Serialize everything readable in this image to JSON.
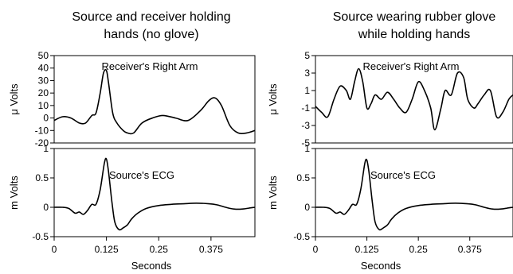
{
  "chart_data": [
    {
      "type": "line",
      "panel": "left",
      "title_lines": [
        "Source and receiver holding",
        "hands (no glove)"
      ],
      "xlabel": "Seconds",
      "x_ticks": [
        "0",
        "0.125",
        "0.25",
        "0.375"
      ],
      "subplots": [
        {
          "annotation": "Receiver's Right Arm",
          "ylabel": "μ Volts",
          "ylim": [
            -20,
            50
          ],
          "y_ticks": [
            "50",
            "40",
            "30",
            "20",
            "10",
            "0",
            "-10",
            "-20"
          ],
          "x": [
            0,
            0.02,
            0.04,
            0.06,
            0.075,
            0.09,
            0.1,
            0.11,
            0.118,
            0.125,
            0.13,
            0.14,
            0.15,
            0.165,
            0.175,
            0.19,
            0.21,
            0.235,
            0.26,
            0.29,
            0.32,
            0.35,
            0.37,
            0.385,
            0.4,
            0.42,
            0.44,
            0.46,
            0.48
          ],
          "y": [
            -2,
            1,
            0,
            -4,
            -4,
            2,
            4,
            20,
            36,
            38,
            28,
            4,
            -4,
            -10,
            -12,
            -12,
            -4,
            0,
            2,
            0,
            -2,
            6,
            14,
            16,
            10,
            -6,
            -12,
            -12,
            -10
          ]
        },
        {
          "annotation": "Source's ECG",
          "ylabel": "m Volts",
          "ylim": [
            -0.5,
            1
          ],
          "y_ticks": [
            "1",
            "0.5",
            "0",
            "-0.5"
          ],
          "x": [
            0,
            0.02,
            0.035,
            0.05,
            0.06,
            0.07,
            0.08,
            0.09,
            0.1,
            0.11,
            0.12,
            0.125,
            0.13,
            0.138,
            0.145,
            0.155,
            0.165,
            0.175,
            0.185,
            0.2,
            0.22,
            0.25,
            0.28,
            0.31,
            0.34,
            0.37,
            0.39,
            0.41,
            0.43,
            0.45,
            0.47,
            0.48
          ],
          "y": [
            0,
            0,
            -0.02,
            -0.1,
            -0.08,
            -0.12,
            -0.05,
            0.05,
            0.05,
            0.3,
            0.75,
            0.82,
            0.6,
            0.1,
            -0.25,
            -0.38,
            -0.35,
            -0.3,
            -0.2,
            -0.1,
            -0.02,
            0.03,
            0.05,
            0.06,
            0.07,
            0.06,
            0.04,
            0.0,
            -0.03,
            -0.03,
            -0.01,
            0.0
          ]
        }
      ]
    },
    {
      "type": "line",
      "panel": "right",
      "title_lines": [
        "Source wearing rubber glove",
        "while holding hands"
      ],
      "xlabel": "Seconds",
      "x_ticks": [
        "0",
        "0.125",
        "0.25",
        "0.375"
      ],
      "subplots": [
        {
          "annotation": "Receiver's Right Arm",
          "ylabel": "μ Volts",
          "ylim": [
            -5,
            5
          ],
          "y_ticks": [
            "5",
            "3",
            "1",
            "-1",
            "-3",
            "-5"
          ],
          "x": [
            0,
            0.015,
            0.03,
            0.045,
            0.06,
            0.075,
            0.085,
            0.095,
            0.105,
            0.115,
            0.125,
            0.135,
            0.145,
            0.16,
            0.175,
            0.19,
            0.205,
            0.22,
            0.235,
            0.25,
            0.265,
            0.28,
            0.29,
            0.305,
            0.315,
            0.33,
            0.345,
            0.36,
            0.37,
            0.385,
            0.395,
            0.41,
            0.425,
            0.44,
            0.455,
            0.47,
            0.48
          ],
          "y": [
            -0.8,
            -1.5,
            -2.0,
            0.0,
            1.5,
            1.0,
            0.0,
            2.0,
            3.5,
            2.0,
            -1.0,
            -0.5,
            0.5,
            0.0,
            0.8,
            0.0,
            -1.0,
            -1.5,
            0.0,
            2.0,
            1.0,
            -1.0,
            -3.5,
            -1.0,
            1.0,
            0.5,
            3.0,
            2.5,
            0.0,
            -1.0,
            -0.5,
            0.5,
            1.0,
            -2.0,
            -1.5,
            0.0,
            0.5
          ]
        },
        {
          "annotation": "Source's ECG",
          "ylabel": "m Volts",
          "ylim": [
            -0.5,
            1
          ],
          "y_ticks": [
            "1",
            "0.5",
            "0",
            "-0.5"
          ],
          "x": [
            0,
            0.02,
            0.035,
            0.05,
            0.06,
            0.07,
            0.08,
            0.09,
            0.1,
            0.11,
            0.12,
            0.125,
            0.13,
            0.138,
            0.145,
            0.155,
            0.165,
            0.175,
            0.185,
            0.2,
            0.22,
            0.25,
            0.28,
            0.31,
            0.34,
            0.37,
            0.39,
            0.41,
            0.43,
            0.45,
            0.47,
            0.48
          ],
          "y": [
            0,
            0,
            -0.02,
            -0.1,
            -0.08,
            -0.12,
            -0.05,
            0.05,
            0.05,
            0.3,
            0.75,
            0.8,
            0.6,
            0.1,
            -0.25,
            -0.38,
            -0.35,
            -0.3,
            -0.2,
            -0.1,
            -0.02,
            0.03,
            0.05,
            0.06,
            0.07,
            0.06,
            0.04,
            0.0,
            -0.03,
            -0.03,
            -0.01,
            0.0
          ]
        }
      ]
    }
  ]
}
